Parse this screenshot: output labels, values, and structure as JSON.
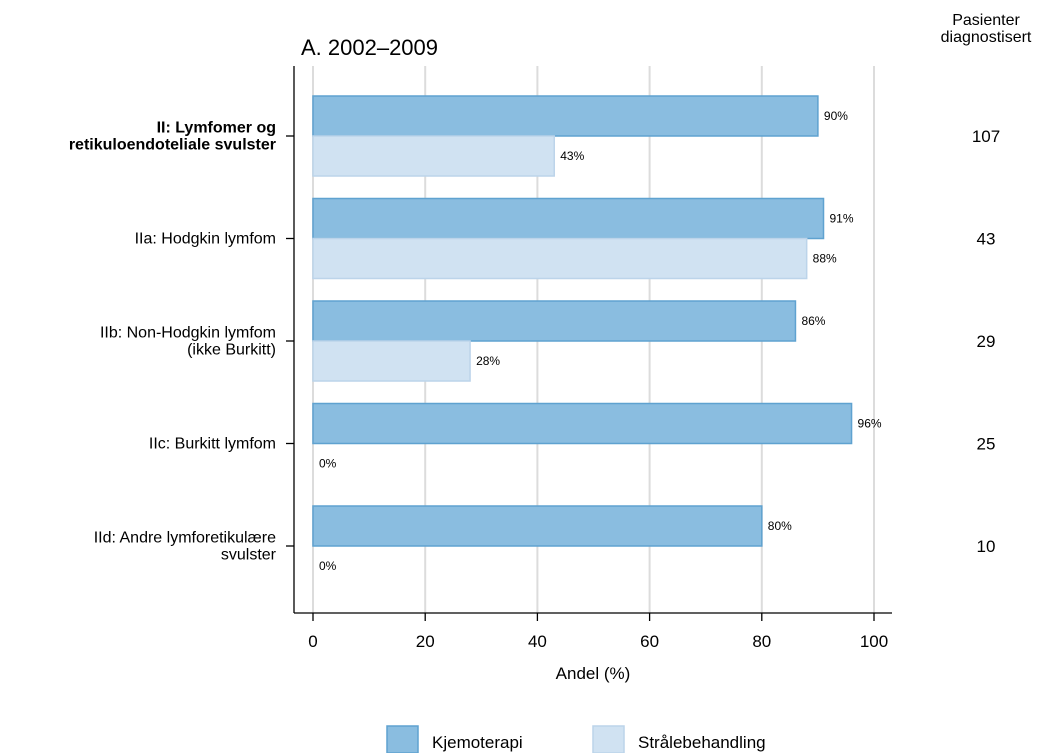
{
  "chart_data": {
    "type": "bar",
    "orientation": "horizontal",
    "title": "A. 2002–2009",
    "xlabel": "Andel (%)",
    "xlim": [
      0,
      100
    ],
    "xticks": [
      0,
      20,
      40,
      60,
      80,
      100
    ],
    "grid": true,
    "categories": [
      {
        "lines": [
          "II: Lymfomer og",
          "retikuloendoteliale svulster"
        ],
        "bold": true
      },
      {
        "lines": [
          "IIa: Hodgkin lymfom"
        ],
        "bold": false
      },
      {
        "lines": [
          "IIb: Non-Hodgkin lymfom",
          "(ikke Burkitt)"
        ],
        "bold": false
      },
      {
        "lines": [
          "IIc: Burkitt lymfom"
        ],
        "bold": false
      },
      {
        "lines": [
          "IId: Andre lymforetikulære",
          "svulster"
        ],
        "bold": false
      }
    ],
    "series": [
      {
        "name": "Kjemoterapi",
        "values": [
          90,
          91,
          86,
          96,
          80
        ],
        "labels": [
          "90%",
          "91%",
          "86%",
          "96%",
          "80%"
        ],
        "color": "#8abde0",
        "stroke": "#5fa2d0"
      },
      {
        "name": "Strålebehandling",
        "values": [
          43,
          88,
          28,
          0,
          0
        ],
        "labels": [
          "43%",
          "88%",
          "28%",
          "0%",
          "0%"
        ],
        "color": "#d0e2f2",
        "stroke": "#bcd4ea"
      }
    ],
    "right_column": {
      "header": [
        "Pasienter",
        "diagnostisert"
      ],
      "values": [
        "107",
        "43",
        "29",
        "25",
        "10"
      ]
    },
    "legend_position": "bottom-center"
  }
}
